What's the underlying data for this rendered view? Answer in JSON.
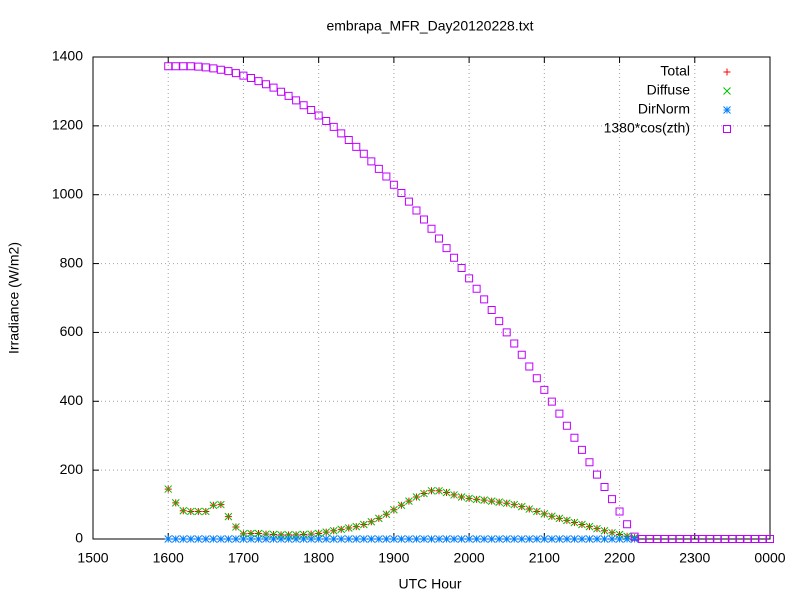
{
  "chart_data": {
    "type": "scatter",
    "title": "embrapa_MFR_Day20120228.txt",
    "xlabel": "UTC Hour",
    "ylabel": "Irradiance (W/m2)",
    "xlim": [
      1500,
      2400
    ],
    "xticks": [
      1500,
      1600,
      1700,
      1800,
      1900,
      2000,
      2100,
      2200,
      2300,
      {
        "value": 2400,
        "label": "0000"
      }
    ],
    "ylim": [
      0,
      1400
    ],
    "yticks": [
      0,
      200,
      400,
      600,
      800,
      1000,
      1200,
      1400
    ],
    "grid": true,
    "legend": "top-right",
    "series": [
      {
        "name": "Total",
        "color": "#ff0000",
        "marker": "plus",
        "x": [
          1600,
          1610,
          1620,
          1630,
          1640,
          1650,
          1660,
          1670,
          1680,
          1690,
          1700,
          1710,
          1720,
          1730,
          1740,
          1750,
          1760,
          1770,
          1780,
          1790,
          1800,
          1810,
          1820,
          1830,
          1840,
          1850,
          1860,
          1870,
          1880,
          1890,
          1900,
          1910,
          1920,
          1930,
          1940,
          1950,
          1960,
          1970,
          1980,
          1990,
          2000,
          2010,
          2020,
          2030,
          2040,
          2050,
          2060,
          2070,
          2080,
          2090,
          2100,
          2110,
          2120,
          2130,
          2140,
          2150,
          2160,
          2170,
          2180,
          2190,
          2200,
          2210,
          2220
        ],
        "values": [
          145,
          105,
          82,
          80,
          80,
          80,
          98,
          100,
          65,
          35,
          15,
          16,
          16,
          14,
          13,
          12,
          12,
          12,
          13,
          14,
          16,
          20,
          24,
          28,
          32,
          36,
          42,
          50,
          60,
          72,
          85,
          98,
          110,
          122,
          132,
          140,
          140,
          135,
          128,
          122,
          118,
          115,
          113,
          110,
          107,
          104,
          100,
          94,
          87,
          80,
          73,
          66,
          60,
          54,
          48,
          42,
          36,
          30,
          24,
          18,
          13,
          8,
          4
        ]
      },
      {
        "name": "Diffuse",
        "color": "#00c000",
        "marker": "cross",
        "x": [
          1600,
          1610,
          1620,
          1630,
          1640,
          1650,
          1660,
          1670,
          1680,
          1690,
          1700,
          1710,
          1720,
          1730,
          1740,
          1750,
          1760,
          1770,
          1780,
          1790,
          1800,
          1810,
          1820,
          1830,
          1840,
          1850,
          1860,
          1870,
          1880,
          1890,
          1900,
          1910,
          1920,
          1930,
          1940,
          1950,
          1960,
          1970,
          1980,
          1990,
          2000,
          2010,
          2020,
          2030,
          2040,
          2050,
          2060,
          2070,
          2080,
          2090,
          2100,
          2110,
          2120,
          2130,
          2140,
          2150,
          2160,
          2170,
          2180,
          2190,
          2200,
          2210,
          2220
        ],
        "values": [
          145,
          105,
          82,
          80,
          80,
          80,
          98,
          100,
          65,
          35,
          15,
          16,
          16,
          14,
          13,
          12,
          12,
          12,
          13,
          14,
          16,
          20,
          24,
          28,
          32,
          36,
          42,
          50,
          60,
          72,
          85,
          98,
          110,
          122,
          132,
          140,
          140,
          135,
          128,
          122,
          118,
          115,
          113,
          110,
          107,
          104,
          100,
          94,
          87,
          80,
          73,
          66,
          60,
          54,
          48,
          42,
          36,
          30,
          24,
          18,
          13,
          8,
          4
        ]
      },
      {
        "name": "DirNorm",
        "color": "#0080ff",
        "marker": "star",
        "x": [
          1600,
          1610,
          1620,
          1630,
          1640,
          1650,
          1660,
          1670,
          1680,
          1690,
          1700,
          1710,
          1720,
          1730,
          1740,
          1750,
          1760,
          1770,
          1780,
          1790,
          1800,
          1810,
          1820,
          1830,
          1840,
          1850,
          1860,
          1870,
          1880,
          1890,
          1900,
          1910,
          1920,
          1930,
          1940,
          1950,
          1960,
          1970,
          1980,
          1990,
          2000,
          2010,
          2020,
          2030,
          2040,
          2050,
          2060,
          2070,
          2080,
          2090,
          2100,
          2110,
          2120,
          2130,
          2140,
          2150,
          2160,
          2170,
          2180,
          2190,
          2200,
          2210,
          2220
        ],
        "values": [
          0,
          0,
          0,
          0,
          0,
          0,
          0,
          0,
          0,
          0,
          0,
          0,
          0,
          0,
          0,
          0,
          0,
          0,
          0,
          0,
          0,
          0,
          0,
          0,
          0,
          0,
          0,
          0,
          0,
          0,
          0,
          0,
          0,
          0,
          0,
          0,
          0,
          0,
          0,
          0,
          0,
          0,
          0,
          0,
          0,
          0,
          0,
          0,
          0,
          0,
          0,
          0,
          0,
          0,
          0,
          0,
          0,
          0,
          0,
          0,
          0,
          0,
          0
        ]
      },
      {
        "name": "1380*cos(zth)",
        "color": "#c000ff",
        "marker": "square",
        "x": [
          1600,
          1610,
          1620,
          1630,
          1640,
          1650,
          1660,
          1670,
          1680,
          1690,
          1700,
          1710,
          1720,
          1730,
          1740,
          1750,
          1760,
          1770,
          1780,
          1790,
          1800,
          1810,
          1820,
          1830,
          1840,
          1850,
          1860,
          1870,
          1880,
          1890,
          1900,
          1910,
          1920,
          1930,
          1940,
          1950,
          1960,
          1970,
          1980,
          1990,
          2000,
          2010,
          2020,
          2030,
          2040,
          2050,
          2060,
          2070,
          2080,
          2090,
          2100,
          2110,
          2120,
          2130,
          2140,
          2150,
          2160,
          2170,
          2180,
          2190,
          2200,
          2210,
          2220,
          2230,
          2240,
          2250,
          2260,
          2270,
          2280,
          2290,
          2300,
          2310,
          2320,
          2330,
          2340,
          2350,
          2360,
          2370,
          2380,
          2390,
          2400
        ],
        "values": [
          1373,
          1373,
          1373,
          1373,
          1372,
          1370,
          1367,
          1363,
          1359,
          1353,
          1346,
          1339,
          1330,
          1321,
          1311,
          1299,
          1287,
          1274,
          1260,
          1246,
          1230,
          1214,
          1197,
          1178,
          1159,
          1139,
          1119,
          1097,
          1075,
          1053,
          1029,
          1005,
          980,
          954,
          928,
          901,
          873,
          845,
          817,
          787,
          757,
          727,
          696,
          665,
          633,
          600,
          568,
          535,
          501,
          467,
          433,
          399,
          364,
          329,
          294,
          259,
          223,
          187,
          151,
          116,
          80,
          43,
          7,
          0,
          0,
          0,
          0,
          0,
          0,
          0,
          0,
          0,
          0,
          0,
          0,
          0,
          0,
          0,
          0,
          0,
          0
        ]
      }
    ]
  }
}
